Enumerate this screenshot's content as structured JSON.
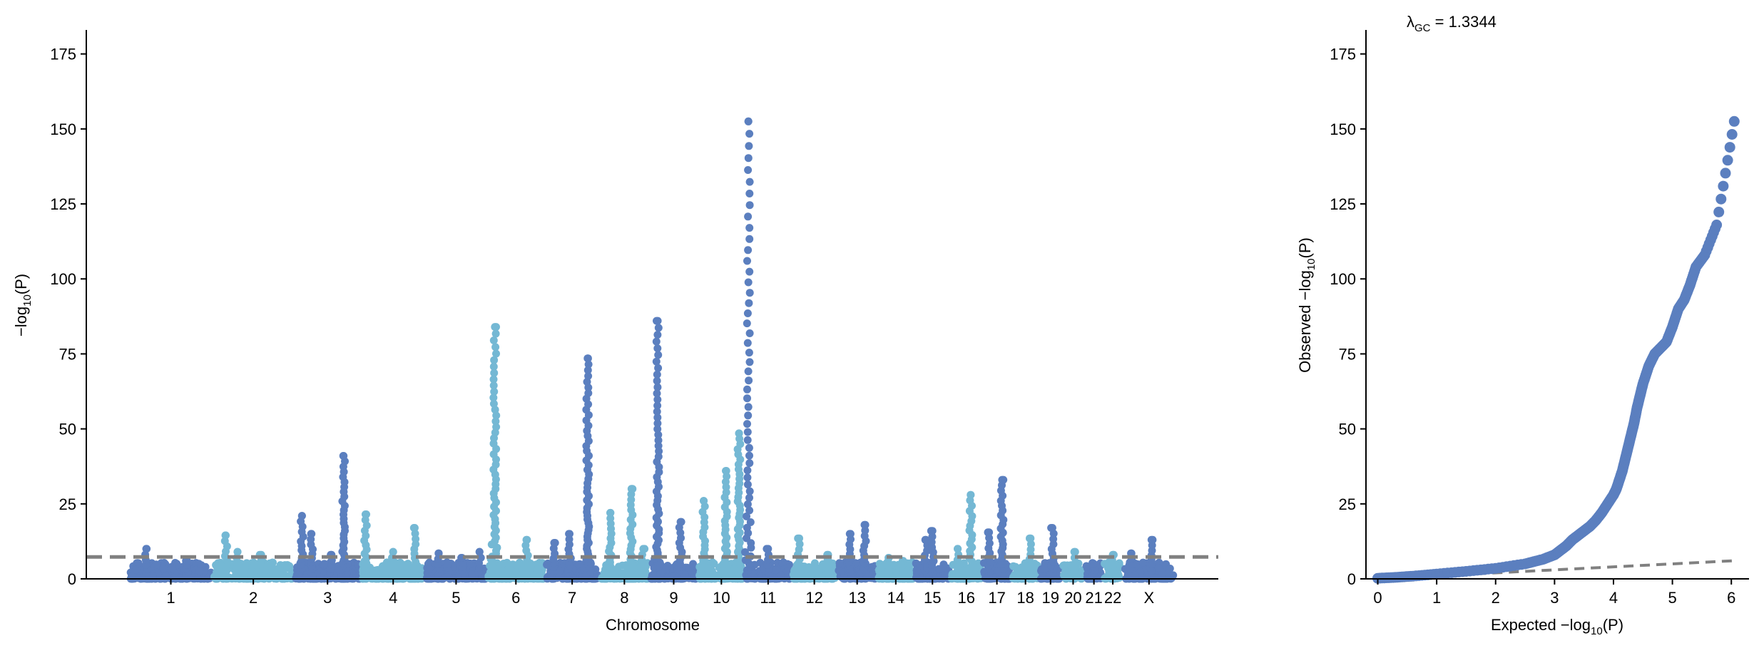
{
  "chart_data": [
    {
      "type": "scatter",
      "kind": "manhattan",
      "xlabel": "Chromosome",
      "ylabel": "−log",
      "ylabel_sub": "10",
      "ylabel_suffix": "(P)",
      "ylim": [
        0,
        183
      ],
      "yticks": [
        0,
        25,
        50,
        75,
        100,
        125,
        150,
        175
      ],
      "grid": false,
      "significance_threshold": 7.3,
      "colors": {
        "odd": "#5b7fbf",
        "even": "#74b8d4",
        "threshold": "#808080"
      },
      "chromosomes": [
        {
          "label": "1",
          "length": 249,
          "color": "odd",
          "peaks": [
            {
              "pos": 0.2,
              "p": 10
            },
            {
              "pos": 0.7,
              "p": 6
            }
          ]
        },
        {
          "label": "2",
          "length": 243,
          "color": "even",
          "peaks": [
            {
              "pos": 0.15,
              "p": 14.5
            },
            {
              "pos": 0.3,
              "p": 9
            },
            {
              "pos": 0.6,
              "p": 8
            }
          ]
        },
        {
          "label": "3",
          "length": 198,
          "color": "odd",
          "peaks": [
            {
              "pos": 0.1,
              "p": 21
            },
            {
              "pos": 0.25,
              "p": 15
            },
            {
              "pos": 0.75,
              "p": 41
            },
            {
              "pos": 0.55,
              "p": 8
            }
          ]
        },
        {
          "label": "4",
          "length": 190,
          "color": "even",
          "peaks": [
            {
              "pos": 0.05,
              "p": 21.5
            },
            {
              "pos": 0.5,
              "p": 9
            },
            {
              "pos": 0.85,
              "p": 17
            }
          ]
        },
        {
          "label": "5",
          "length": 181,
          "color": "odd",
          "peaks": [
            {
              "pos": 0.2,
              "p": 8.5
            },
            {
              "pos": 0.6,
              "p": 7
            },
            {
              "pos": 0.9,
              "p": 9
            }
          ]
        },
        {
          "label": "6",
          "length": 171,
          "color": "even",
          "peaks": [
            {
              "pos": 0.12,
              "p": 84
            },
            {
              "pos": 0.7,
              "p": 13
            }
          ]
        },
        {
          "label": "7",
          "length": 159,
          "color": "odd",
          "peaks": [
            {
              "pos": 0.15,
              "p": 12
            },
            {
              "pos": 0.45,
              "p": 15
            },
            {
              "pos": 0.8,
              "p": 73.5
            }
          ]
        },
        {
          "label": "8",
          "length": 146,
          "color": "even",
          "peaks": [
            {
              "pos": 0.2,
              "p": 22
            },
            {
              "pos": 0.65,
              "p": 30
            },
            {
              "pos": 0.9,
              "p": 10
            }
          ]
        },
        {
          "label": "9",
          "length": 141,
          "color": "odd",
          "peaks": [
            {
              "pos": 0.15,
              "p": 86
            },
            {
              "pos": 0.65,
              "p": 19
            }
          ]
        },
        {
          "label": "10",
          "length": 136,
          "color": "even",
          "peaks": [
            {
              "pos": 0.1,
              "p": 26
            },
            {
              "pos": 0.6,
              "p": 36
            },
            {
              "pos": 0.9,
              "p": 48.5
            }
          ]
        },
        {
          "label": "11",
          "length": 135,
          "color": "odd",
          "peaks": [
            {
              "pos": 0.05,
              "p": 152.5
            },
            {
              "pos": 0.5,
              "p": 10
            }
          ]
        },
        {
          "label": "12",
          "length": 133,
          "color": "even",
          "peaks": [
            {
              "pos": 0.15,
              "p": 13.5
            },
            {
              "pos": 0.8,
              "p": 8
            }
          ]
        },
        {
          "label": "13",
          "length": 114,
          "color": "odd",
          "peaks": [
            {
              "pos": 0.3,
              "p": 15
            },
            {
              "pos": 0.7,
              "p": 18
            }
          ]
        },
        {
          "label": "14",
          "length": 107,
          "color": "even",
          "peaks": [
            {
              "pos": 0.3,
              "p": 7
            },
            {
              "pos": 0.7,
              "p": 6
            }
          ]
        },
        {
          "label": "15",
          "length": 102,
          "color": "odd",
          "peaks": [
            {
              "pos": 0.3,
              "p": 13
            },
            {
              "pos": 0.5,
              "p": 16
            }
          ]
        },
        {
          "label": "16",
          "length": 90,
          "color": "even",
          "peaks": [
            {
              "pos": 0.2,
              "p": 10
            },
            {
              "pos": 0.65,
              "p": 28
            }
          ]
        },
        {
          "label": "17",
          "length": 81,
          "color": "odd",
          "peaks": [
            {
              "pos": 0.2,
              "p": 15.5
            },
            {
              "pos": 0.7,
              "p": 33
            }
          ]
        },
        {
          "label": "18",
          "length": 78,
          "color": "even",
          "peaks": [
            {
              "pos": 0.7,
              "p": 13.5
            }
          ]
        },
        {
          "label": "19",
          "length": 59,
          "color": "odd",
          "peaks": [
            {
              "pos": 0.6,
              "p": 17
            }
          ]
        },
        {
          "label": "20",
          "length": 63,
          "color": "even",
          "peaks": [
            {
              "pos": 0.6,
              "p": 9
            }
          ]
        },
        {
          "label": "21",
          "length": 48,
          "color": "odd",
          "peaks": [
            {
              "pos": 0.5,
              "p": 5
            }
          ]
        },
        {
          "label": "22",
          "length": 51,
          "color": "even",
          "peaks": [
            {
              "pos": 0.5,
              "p": 8
            }
          ]
        },
        {
          "label": "X",
          "length": 155,
          "color": "odd",
          "peaks": [
            {
              "pos": 0.15,
              "p": 8.5
            },
            {
              "pos": 0.55,
              "p": 13
            }
          ]
        }
      ]
    },
    {
      "type": "scatter",
      "kind": "qq",
      "title_prefix": "λ",
      "title_sub": "GC",
      "title_value": " = 1.3344",
      "xlabel": "Expected −log",
      "xlabel_sub": "10",
      "xlabel_suffix": "(P)",
      "ylabel": "Observed −log",
      "ylabel_sub": "10",
      "ylabel_suffix": "(P)",
      "xlim": [
        -0.2,
        6.3
      ],
      "ylim": [
        0,
        183
      ],
      "xticks": [
        0,
        1,
        2,
        3,
        4,
        5,
        6
      ],
      "yticks": [
        0,
        25,
        50,
        75,
        100,
        125,
        150,
        175
      ],
      "grid": false,
      "expected_line": {
        "x": [
          0,
          6.1
        ],
        "y": [
          0,
          6.1
        ]
      },
      "colors": {
        "points": "#5b7fbf",
        "line": "#808080"
      },
      "points": {
        "x": [
          0.0,
          0.3,
          0.6,
          1.0,
          1.5,
          2.0,
          2.5,
          2.8,
          3.0,
          3.1,
          3.2,
          3.3,
          3.4,
          3.5,
          3.6,
          3.7,
          3.8,
          3.9,
          4.0,
          4.05,
          4.1,
          4.15,
          4.2,
          4.25,
          4.3,
          4.35,
          4.4,
          4.45,
          4.5,
          4.6,
          4.7,
          4.8,
          4.9,
          5.0,
          5.1,
          5.2,
          5.3,
          5.4,
          5.55,
          5.75,
          6.05
        ],
        "y": [
          0.2,
          0.5,
          0.9,
          1.6,
          2.5,
          3.5,
          5.0,
          6.5,
          8.0,
          9.5,
          11,
          13,
          14.5,
          16,
          17.5,
          19.5,
          22,
          25,
          28,
          30,
          33,
          36,
          40,
          44,
          48,
          52,
          57,
          61,
          65,
          71,
          75,
          77,
          79,
          84,
          90,
          93,
          98,
          104,
          108,
          118,
          152.5
        ]
      }
    }
  ]
}
